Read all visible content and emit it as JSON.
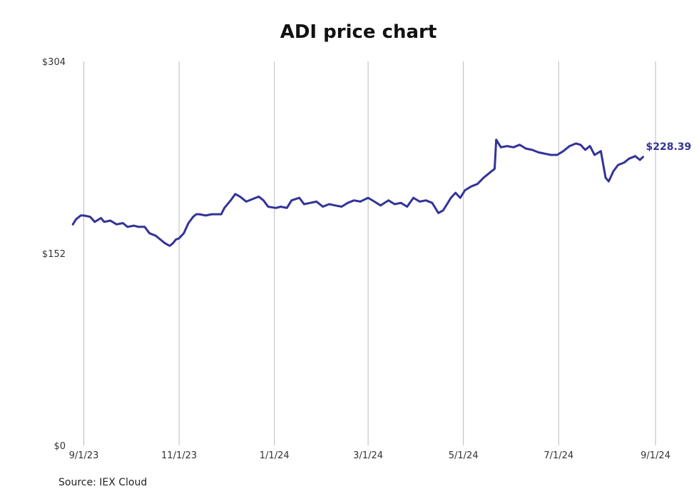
{
  "chart_data": {
    "type": "line",
    "title": "ADI price chart",
    "xlabel": "",
    "ylabel": "",
    "ylim": [
      0,
      304
    ],
    "y_ticks": [
      "$0",
      "$152",
      "$304"
    ],
    "y_tick_values": [
      0,
      152,
      304
    ],
    "x_ticks": [
      "9/1/23",
      "11/1/23",
      "1/1/24",
      "3/1/24",
      "5/1/24",
      "7/1/24",
      "9/1/24"
    ],
    "x_tick_dates": [
      "2023-09-01",
      "2023-11-01",
      "2024-01-01",
      "2024-03-01",
      "2024-05-01",
      "2024-07-01",
      "2024-09-01"
    ],
    "xlim": [
      "2023-08-24",
      "2024-09-06"
    ],
    "grid": "vertical",
    "color": "#333399",
    "last_value_label": "$228.39",
    "series": [
      {
        "x": [
          "2023-08-25",
          "2023-08-27",
          "2023-08-30",
          "2023-09-01",
          "2023-09-05",
          "2023-09-08",
          "2023-09-12",
          "2023-09-14",
          "2023-09-18",
          "2023-09-22",
          "2023-09-26",
          "2023-09-29",
          "2023-10-03",
          "2023-10-06",
          "2023-10-10",
          "2023-10-13",
          "2023-10-17",
          "2023-10-20",
          "2023-10-23",
          "2023-10-26",
          "2023-10-28",
          "2023-10-30",
          "2023-11-01",
          "2023-11-04",
          "2023-11-07",
          "2023-11-10",
          "2023-11-12",
          "2023-11-14",
          "2023-11-18",
          "2023-11-22",
          "2023-11-28",
          "2023-11-30",
          "2023-12-04",
          "2023-12-07",
          "2023-12-10",
          "2023-12-14",
          "2023-12-18",
          "2023-12-22",
          "2023-12-25",
          "2023-12-28",
          "2024-01-02",
          "2024-01-05",
          "2024-01-09",
          "2024-01-12",
          "2024-01-17",
          "2024-01-20",
          "2024-01-24",
          "2024-01-28",
          "2024-02-01",
          "2024-02-05",
          "2024-02-09",
          "2024-02-13",
          "2024-02-17",
          "2024-02-21",
          "2024-02-25",
          "2024-03-01",
          "2024-03-05",
          "2024-03-09",
          "2024-03-14",
          "2024-03-18",
          "2024-03-22",
          "2024-03-26",
          "2024-03-30",
          "2024-04-03",
          "2024-04-07",
          "2024-04-11",
          "2024-04-15",
          "2024-04-18",
          "2024-04-20",
          "2024-04-23",
          "2024-04-26",
          "2024-04-29",
          "2024-05-02",
          "2024-05-06",
          "2024-05-10",
          "2024-05-14",
          "2024-05-18",
          "2024-05-21",
          "2024-05-22",
          "2024-05-25",
          "2024-05-29",
          "2024-06-02",
          "2024-06-06",
          "2024-06-10",
          "2024-06-14",
          "2024-06-18",
          "2024-06-22",
          "2024-06-26",
          "2024-06-30",
          "2024-07-04",
          "2024-07-08",
          "2024-07-12",
          "2024-07-15",
          "2024-07-18",
          "2024-07-21",
          "2024-07-24",
          "2024-07-28",
          "2024-07-31",
          "2024-08-02",
          "2024-08-05",
          "2024-08-08",
          "2024-08-12",
          "2024-08-15",
          "2024-08-19",
          "2024-08-22",
          "2024-08-24"
        ],
        "y": [
          175,
          179,
          182,
          182,
          181,
          177,
          180,
          177,
          178,
          175,
          176,
          173,
          174,
          173,
          173,
          168,
          166,
          163,
          160,
          158,
          160,
          163,
          164,
          168,
          176,
          181,
          183,
          183,
          182,
          183,
          183,
          188,
          194,
          199,
          197,
          193,
          195,
          197,
          194,
          189,
          188,
          189,
          188,
          194,
          196,
          191,
          192,
          193,
          189,
          191,
          190,
          189,
          192,
          194,
          193,
          196,
          193,
          190,
          194,
          191,
          192,
          189,
          196,
          193,
          194,
          192,
          184,
          186,
          190,
          196,
          200,
          196,
          202,
          205,
          207,
          212,
          216,
          219,
          242,
          236,
          237,
          236,
          238,
          235,
          234,
          232,
          231,
          230,
          230,
          233,
          237,
          239,
          238,
          234,
          237,
          230,
          233,
          212,
          209,
          217,
          222,
          224,
          227,
          229,
          226,
          228.39
        ]
      }
    ]
  },
  "source_note": "Source: IEX Cloud"
}
